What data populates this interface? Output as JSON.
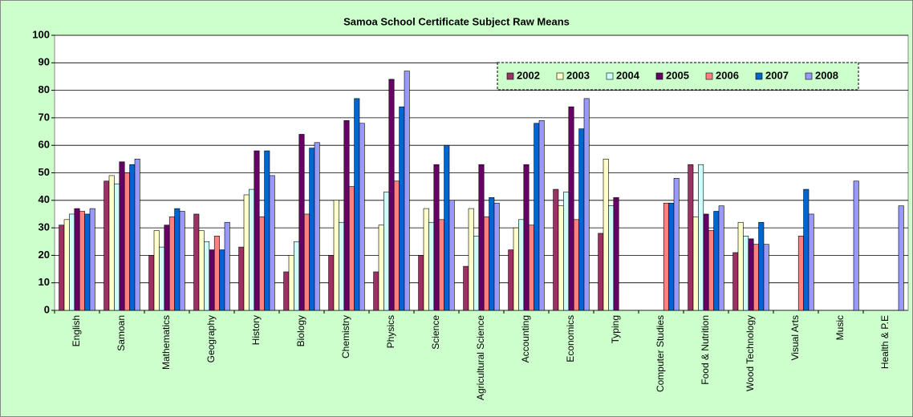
{
  "chart_data": {
    "type": "bar",
    "title": "Samoa School Certificate Subject Raw Means",
    "categories": [
      "English",
      "Samoan",
      "Mathematics",
      "Geography",
      "History",
      "Biology",
      "Chemistry",
      "Physics",
      "Science",
      "Agricultural Science",
      "Accounting",
      "Economics",
      "Typing",
      "Computer Studies",
      "Food & Nutrition",
      "Wood Technology",
      "Visual Arts",
      "Music",
      "Health & P.E"
    ],
    "series": [
      {
        "name": "2002",
        "color": "#993366",
        "values": [
          31,
          47,
          20,
          35,
          23,
          14,
          20,
          14,
          20,
          16,
          22,
          44,
          28,
          null,
          53,
          21,
          null,
          null,
          null
        ]
      },
      {
        "name": "2003",
        "color": "#ffffcc",
        "values": [
          33,
          49,
          29,
          29,
          42,
          20,
          40,
          31,
          37,
          37,
          30,
          38,
          55,
          null,
          34,
          32,
          null,
          null,
          null
        ]
      },
      {
        "name": "2004",
        "color": "#ccffff",
        "values": [
          35,
          46,
          23,
          25,
          44,
          25,
          32,
          43,
          32,
          27,
          33,
          43,
          38,
          null,
          53,
          27,
          null,
          null,
          null
        ]
      },
      {
        "name": "2005",
        "color": "#660066",
        "values": [
          37,
          54,
          31,
          22,
          58,
          64,
          69,
          84,
          53,
          53,
          53,
          74,
          41,
          null,
          35,
          26,
          null,
          null,
          null
        ]
      },
      {
        "name": "2006",
        "color": "#ff8080",
        "values": [
          36,
          50,
          34,
          27,
          34,
          35,
          45,
          47,
          33,
          34,
          31,
          33,
          null,
          39,
          29,
          24,
          27,
          null,
          null
        ]
      },
      {
        "name": "2007",
        "color": "#0066cc",
        "values": [
          35,
          53,
          37,
          22,
          58,
          59,
          77,
          74,
          60,
          41,
          68,
          66,
          null,
          39,
          36,
          32,
          44,
          null,
          null
        ]
      },
      {
        "name": "2008",
        "color": "#9999ff",
        "values": [
          37,
          55,
          36,
          32,
          49,
          61,
          68,
          87,
          40,
          39,
          69,
          77,
          null,
          48,
          38,
          24,
          35,
          47,
          38
        ]
      }
    ],
    "ylim": [
      0,
      100
    ],
    "yticks": [
      0,
      10,
      20,
      30,
      40,
      50,
      60,
      70,
      80,
      90,
      100
    ],
    "grid": true,
    "legend": "top-right"
  }
}
